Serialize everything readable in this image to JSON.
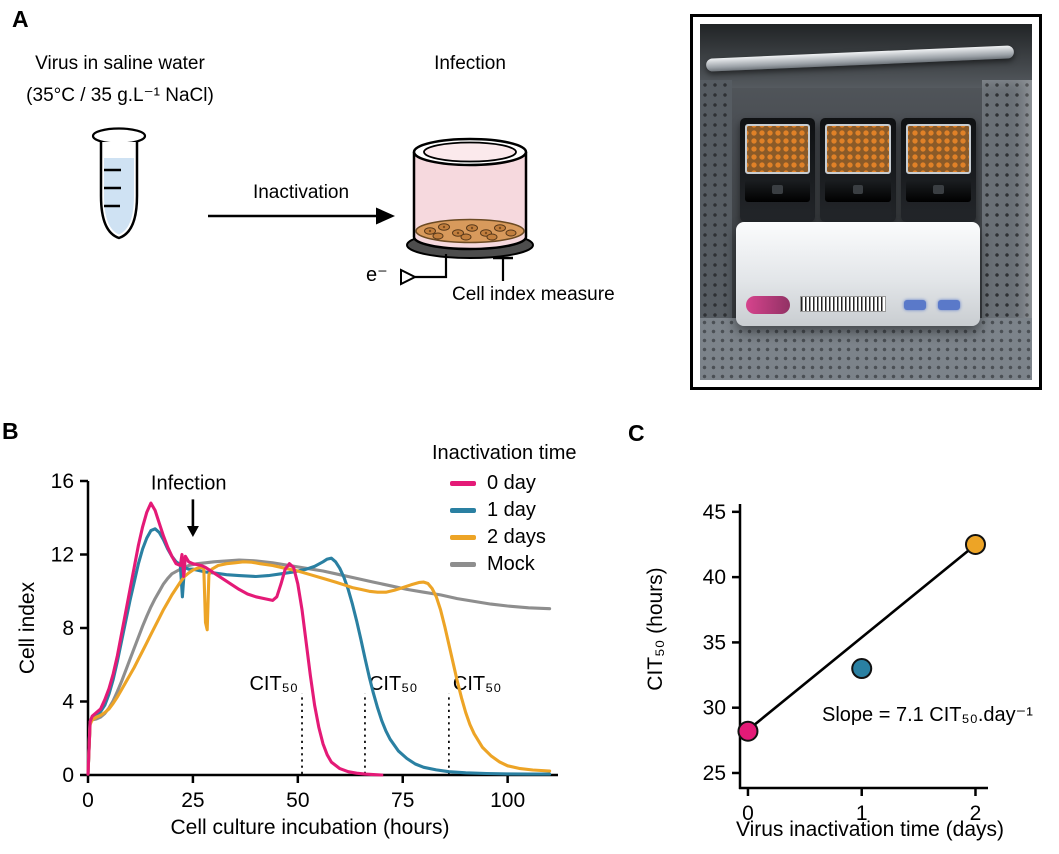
{
  "panel_a": {
    "label": "A",
    "caption_line1": "Virus in saline water",
    "caption_line2": "(35°C / 35 g.L⁻¹ NaCl)",
    "arrow_label": "Inactivation",
    "infection_title": "Infection",
    "electrode_label": "e⁻",
    "measure_label": "Cell index measure",
    "photo_alt": "RTCA instrument with three E-plate cradles inside an incubator"
  },
  "panel_b": {
    "label": "B"
  },
  "panel_c": {
    "label": "C"
  },
  "chart_data": [
    {
      "id": "panel-b",
      "type": "line",
      "title": "",
      "xlabel": "Cell culture incubation (hours)",
      "ylabel": "Cell index",
      "xlim": [
        0,
        112
      ],
      "ylim": [
        0,
        16
      ],
      "xticks": [
        0,
        25,
        50,
        75,
        100
      ],
      "yticks": [
        0,
        4,
        8,
        12,
        16
      ],
      "legend_title": "Inactivation time",
      "legend_position": "top-right",
      "grid": false,
      "draw_order": [
        3,
        1,
        2,
        0
      ],
      "series": [
        {
          "name": "0 day",
          "color": "#e41a77",
          "points": [
            [
              0,
              0.05
            ],
            [
              0.5,
              2.9
            ],
            [
              1,
              3.2
            ],
            [
              2,
              3.4
            ],
            [
              3,
              3.6
            ],
            [
              4,
              4.1
            ],
            [
              5,
              4.7
            ],
            [
              6,
              5.5
            ],
            [
              7,
              6.5
            ],
            [
              8,
              7.7
            ],
            [
              9,
              8.9
            ],
            [
              10,
              10.1
            ],
            [
              11,
              11.3
            ],
            [
              12,
              12.5
            ],
            [
              13,
              13.5
            ],
            [
              14,
              14.3
            ],
            [
              15,
              14.8
            ],
            [
              16,
              14.4
            ],
            [
              17,
              13.7
            ],
            [
              18,
              13.0
            ],
            [
              19,
              12.4
            ],
            [
              20,
              11.9
            ],
            [
              21,
              11.5
            ],
            [
              22,
              11.4
            ],
            [
              22.4,
              12.0
            ],
            [
              22.8,
              10.8
            ],
            [
              23.2,
              11.9
            ],
            [
              24,
              11.6
            ],
            [
              25,
              11.5
            ],
            [
              26,
              11.45
            ],
            [
              27,
              11.4
            ],
            [
              28,
              11.3
            ],
            [
              30,
              11.0
            ],
            [
              32,
              10.7
            ],
            [
              34,
              10.4
            ],
            [
              36,
              10.1
            ],
            [
              38,
              9.85
            ],
            [
              40,
              9.7
            ],
            [
              42,
              9.6
            ],
            [
              44,
              9.5
            ],
            [
              45,
              9.7
            ],
            [
              46,
              10.4
            ],
            [
              47,
              11.2
            ],
            [
              48,
              11.5
            ],
            [
              49,
              11.3
            ],
            [
              50,
              10.4
            ],
            [
              51,
              9.0
            ],
            [
              52,
              7.2
            ],
            [
              53,
              5.4
            ],
            [
              54,
              3.8
            ],
            [
              55,
              2.6
            ],
            [
              56,
              1.7
            ],
            [
              57,
              1.1
            ],
            [
              58,
              0.7
            ],
            [
              60,
              0.35
            ],
            [
              62,
              0.18
            ],
            [
              64,
              0.1
            ],
            [
              66,
              0.05
            ],
            [
              68,
              0.02
            ],
            [
              70,
              0
            ]
          ]
        },
        {
          "name": "1 day",
          "color": "#2a80a2",
          "points": [
            [
              0,
              0.05
            ],
            [
              0.5,
              2.9
            ],
            [
              1,
              3.1
            ],
            [
              2,
              3.25
            ],
            [
              3,
              3.45
            ],
            [
              4,
              3.8
            ],
            [
              5,
              4.4
            ],
            [
              6,
              5.2
            ],
            [
              7,
              6.2
            ],
            [
              8,
              7.3
            ],
            [
              9,
              8.4
            ],
            [
              10,
              9.5
            ],
            [
              11,
              10.5
            ],
            [
              12,
              11.5
            ],
            [
              13,
              12.3
            ],
            [
              14,
              12.9
            ],
            [
              15,
              13.3
            ],
            [
              16,
              13.4
            ],
            [
              17,
              13.2
            ],
            [
              18,
              12.8
            ],
            [
              19,
              12.3
            ],
            [
              20,
              11.9
            ],
            [
              21,
              11.6
            ],
            [
              22,
              11.45
            ],
            [
              22.5,
              9.7
            ],
            [
              23,
              11.3
            ],
            [
              24,
              11.2
            ],
            [
              25,
              11.2
            ],
            [
              26,
              11.15
            ],
            [
              28,
              11.05
            ],
            [
              30,
              11.0
            ],
            [
              33,
              10.9
            ],
            [
              36,
              10.85
            ],
            [
              40,
              10.8
            ],
            [
              43,
              10.85
            ],
            [
              46,
              10.95
            ],
            [
              49,
              11.05
            ],
            [
              52,
              11.2
            ],
            [
              54,
              11.35
            ],
            [
              56,
              11.6
            ],
            [
              57,
              11.75
            ],
            [
              58,
              11.8
            ],
            [
              59,
              11.6
            ],
            [
              60,
              11.25
            ],
            [
              61,
              10.75
            ],
            [
              62,
              10.1
            ],
            [
              63,
              9.3
            ],
            [
              64,
              8.4
            ],
            [
              65,
              7.4
            ],
            [
              66,
              6.35
            ],
            [
              67,
              5.35
            ],
            [
              68,
              4.45
            ],
            [
              69,
              3.65
            ],
            [
              70,
              2.95
            ],
            [
              71,
              2.4
            ],
            [
              72,
              1.95
            ],
            [
              74,
              1.3
            ],
            [
              76,
              0.9
            ],
            [
              78,
              0.6
            ],
            [
              80,
              0.42
            ],
            [
              83,
              0.28
            ],
            [
              86,
              0.18
            ],
            [
              90,
              0.12
            ],
            [
              95,
              0.08
            ],
            [
              100,
              0.06
            ],
            [
              105,
              0.05
            ],
            [
              110,
              0.05
            ]
          ]
        },
        {
          "name": "2 days",
          "color": "#eda426",
          "points": [
            [
              0,
              0.05
            ],
            [
              0.5,
              2.75
            ],
            [
              1,
              3.0
            ],
            [
              2,
              3.15
            ],
            [
              3,
              3.25
            ],
            [
              4,
              3.4
            ],
            [
              5,
              3.6
            ],
            [
              6,
              3.9
            ],
            [
              7,
              4.25
            ],
            [
              8,
              4.65
            ],
            [
              9,
              5.05
            ],
            [
              10,
              5.45
            ],
            [
              11,
              5.85
            ],
            [
              12,
              6.3
            ],
            [
              13,
              6.75
            ],
            [
              14,
              7.2
            ],
            [
              15,
              7.65
            ],
            [
              16,
              8.1
            ],
            [
              17,
              8.55
            ],
            [
              18,
              9.0
            ],
            [
              19,
              9.4
            ],
            [
              20,
              9.8
            ],
            [
              21,
              10.15
            ],
            [
              22,
              10.5
            ],
            [
              23,
              10.8
            ],
            [
              24,
              11.0
            ],
            [
              25,
              11.15
            ],
            [
              26,
              11.25
            ],
            [
              27,
              11.3
            ],
            [
              27.6,
              11.25
            ],
            [
              28,
              8.3
            ],
            [
              28.4,
              7.9
            ],
            [
              28.8,
              10.9
            ],
            [
              29.5,
              11.2
            ],
            [
              31,
              11.4
            ],
            [
              33,
              11.5
            ],
            [
              35,
              11.55
            ],
            [
              37,
              11.6
            ],
            [
              39,
              11.58
            ],
            [
              41,
              11.5
            ],
            [
              44,
              11.4
            ],
            [
              47,
              11.25
            ],
            [
              50,
              11.1
            ],
            [
              53,
              10.9
            ],
            [
              56,
              10.7
            ],
            [
              59,
              10.5
            ],
            [
              61,
              10.35
            ],
            [
              63,
              10.2
            ],
            [
              65,
              10.1
            ],
            [
              67,
              10.0
            ],
            [
              69,
              9.95
            ],
            [
              71,
              9.95
            ],
            [
              73,
              10.05
            ],
            [
              75,
              10.2
            ],
            [
              77,
              10.35
            ],
            [
              79,
              10.48
            ],
            [
              80,
              10.5
            ],
            [
              81,
              10.42
            ],
            [
              82,
              10.15
            ],
            [
              83,
              9.7
            ],
            [
              84,
              9.0
            ],
            [
              85,
              8.1
            ],
            [
              86,
              7.1
            ],
            [
              87,
              6.1
            ],
            [
              88,
              5.1
            ],
            [
              89,
              4.2
            ],
            [
              90,
              3.4
            ],
            [
              91,
              2.75
            ],
            [
              92,
              2.25
            ],
            [
              94,
              1.5
            ],
            [
              96,
              1.05
            ],
            [
              98,
              0.72
            ],
            [
              100,
              0.5
            ],
            [
              103,
              0.35
            ],
            [
              106,
              0.27
            ],
            [
              110,
              0.22
            ]
          ]
        },
        {
          "name": "Mock",
          "color": "#8e8e8e",
          "points": [
            [
              0,
              0.05
            ],
            [
              0.5,
              2.85
            ],
            [
              1,
              3.0
            ],
            [
              2,
              3.05
            ],
            [
              3,
              3.15
            ],
            [
              4,
              3.35
            ],
            [
              5,
              3.65
            ],
            [
              6,
              4.05
            ],
            [
              7,
              4.55
            ],
            [
              8,
              5.1
            ],
            [
              9,
              5.7
            ],
            [
              10,
              6.3
            ],
            [
              11,
              6.9
            ],
            [
              12,
              7.5
            ],
            [
              13,
              8.1
            ],
            [
              14,
              8.65
            ],
            [
              15,
              9.15
            ],
            [
              16,
              9.6
            ],
            [
              17,
              10.0
            ],
            [
              18,
              10.4
            ],
            [
              19,
              10.7
            ],
            [
              20,
              10.95
            ],
            [
              22,
              11.2
            ],
            [
              24,
              11.4
            ],
            [
              26,
              11.5
            ],
            [
              28,
              11.55
            ],
            [
              30,
              11.6
            ],
            [
              33,
              11.65
            ],
            [
              36,
              11.7
            ],
            [
              40,
              11.65
            ],
            [
              44,
              11.55
            ],
            [
              48,
              11.4
            ],
            [
              52,
              11.25
            ],
            [
              56,
              11.1
            ],
            [
              60,
              10.9
            ],
            [
              64,
              10.7
            ],
            [
              68,
              10.5
            ],
            [
              72,
              10.3
            ],
            [
              76,
              10.1
            ],
            [
              80,
              9.95
            ],
            [
              84,
              9.8
            ],
            [
              88,
              9.6
            ],
            [
              92,
              9.45
            ],
            [
              96,
              9.3
            ],
            [
              100,
              9.2
            ],
            [
              105,
              9.1
            ],
            [
              110,
              9.05
            ]
          ]
        }
      ],
      "annotations": {
        "infection": {
          "label": "Infection",
          "x": 25,
          "label_x": 24,
          "label_y": 15.55,
          "arrow_y_from": 15.0,
          "arrow_y_to": 12.95
        },
        "cit50": {
          "label": "CIT₅₀",
          "y_top": 4.45,
          "lines": [
            {
              "x": 51,
              "side": "left"
            },
            {
              "x": 66,
              "side": "right"
            },
            {
              "x": 86,
              "side": "right"
            }
          ]
        }
      }
    },
    {
      "id": "panel-c",
      "type": "scatter",
      "title": "",
      "xlabel": "Virus inactivation time (days)",
      "ylabel": "CIT₅₀ (hours)",
      "xlim": [
        -0.07,
        2.11
      ],
      "ylim": [
        23.85,
        45.6
      ],
      "xticks": [
        0,
        1,
        2
      ],
      "yticks": [
        25,
        30,
        35,
        40,
        45
      ],
      "grid": false,
      "points": [
        {
          "x": 0,
          "y": 28.2,
          "color": "#e41a77",
          "label": "0 day"
        },
        {
          "x": 1,
          "y": 33.0,
          "color": "#2a80a2",
          "label": "1 day"
        },
        {
          "x": 2,
          "y": 42.5,
          "color": "#eda426",
          "label": "2 days"
        }
      ],
      "fit_line": {
        "x1": -0.02,
        "y1": 28.15,
        "x2": 2.06,
        "y2": 42.9,
        "slope": 7.1
      },
      "annotation": "Slope = 7.1 CIT₅₀.day⁻¹"
    }
  ]
}
